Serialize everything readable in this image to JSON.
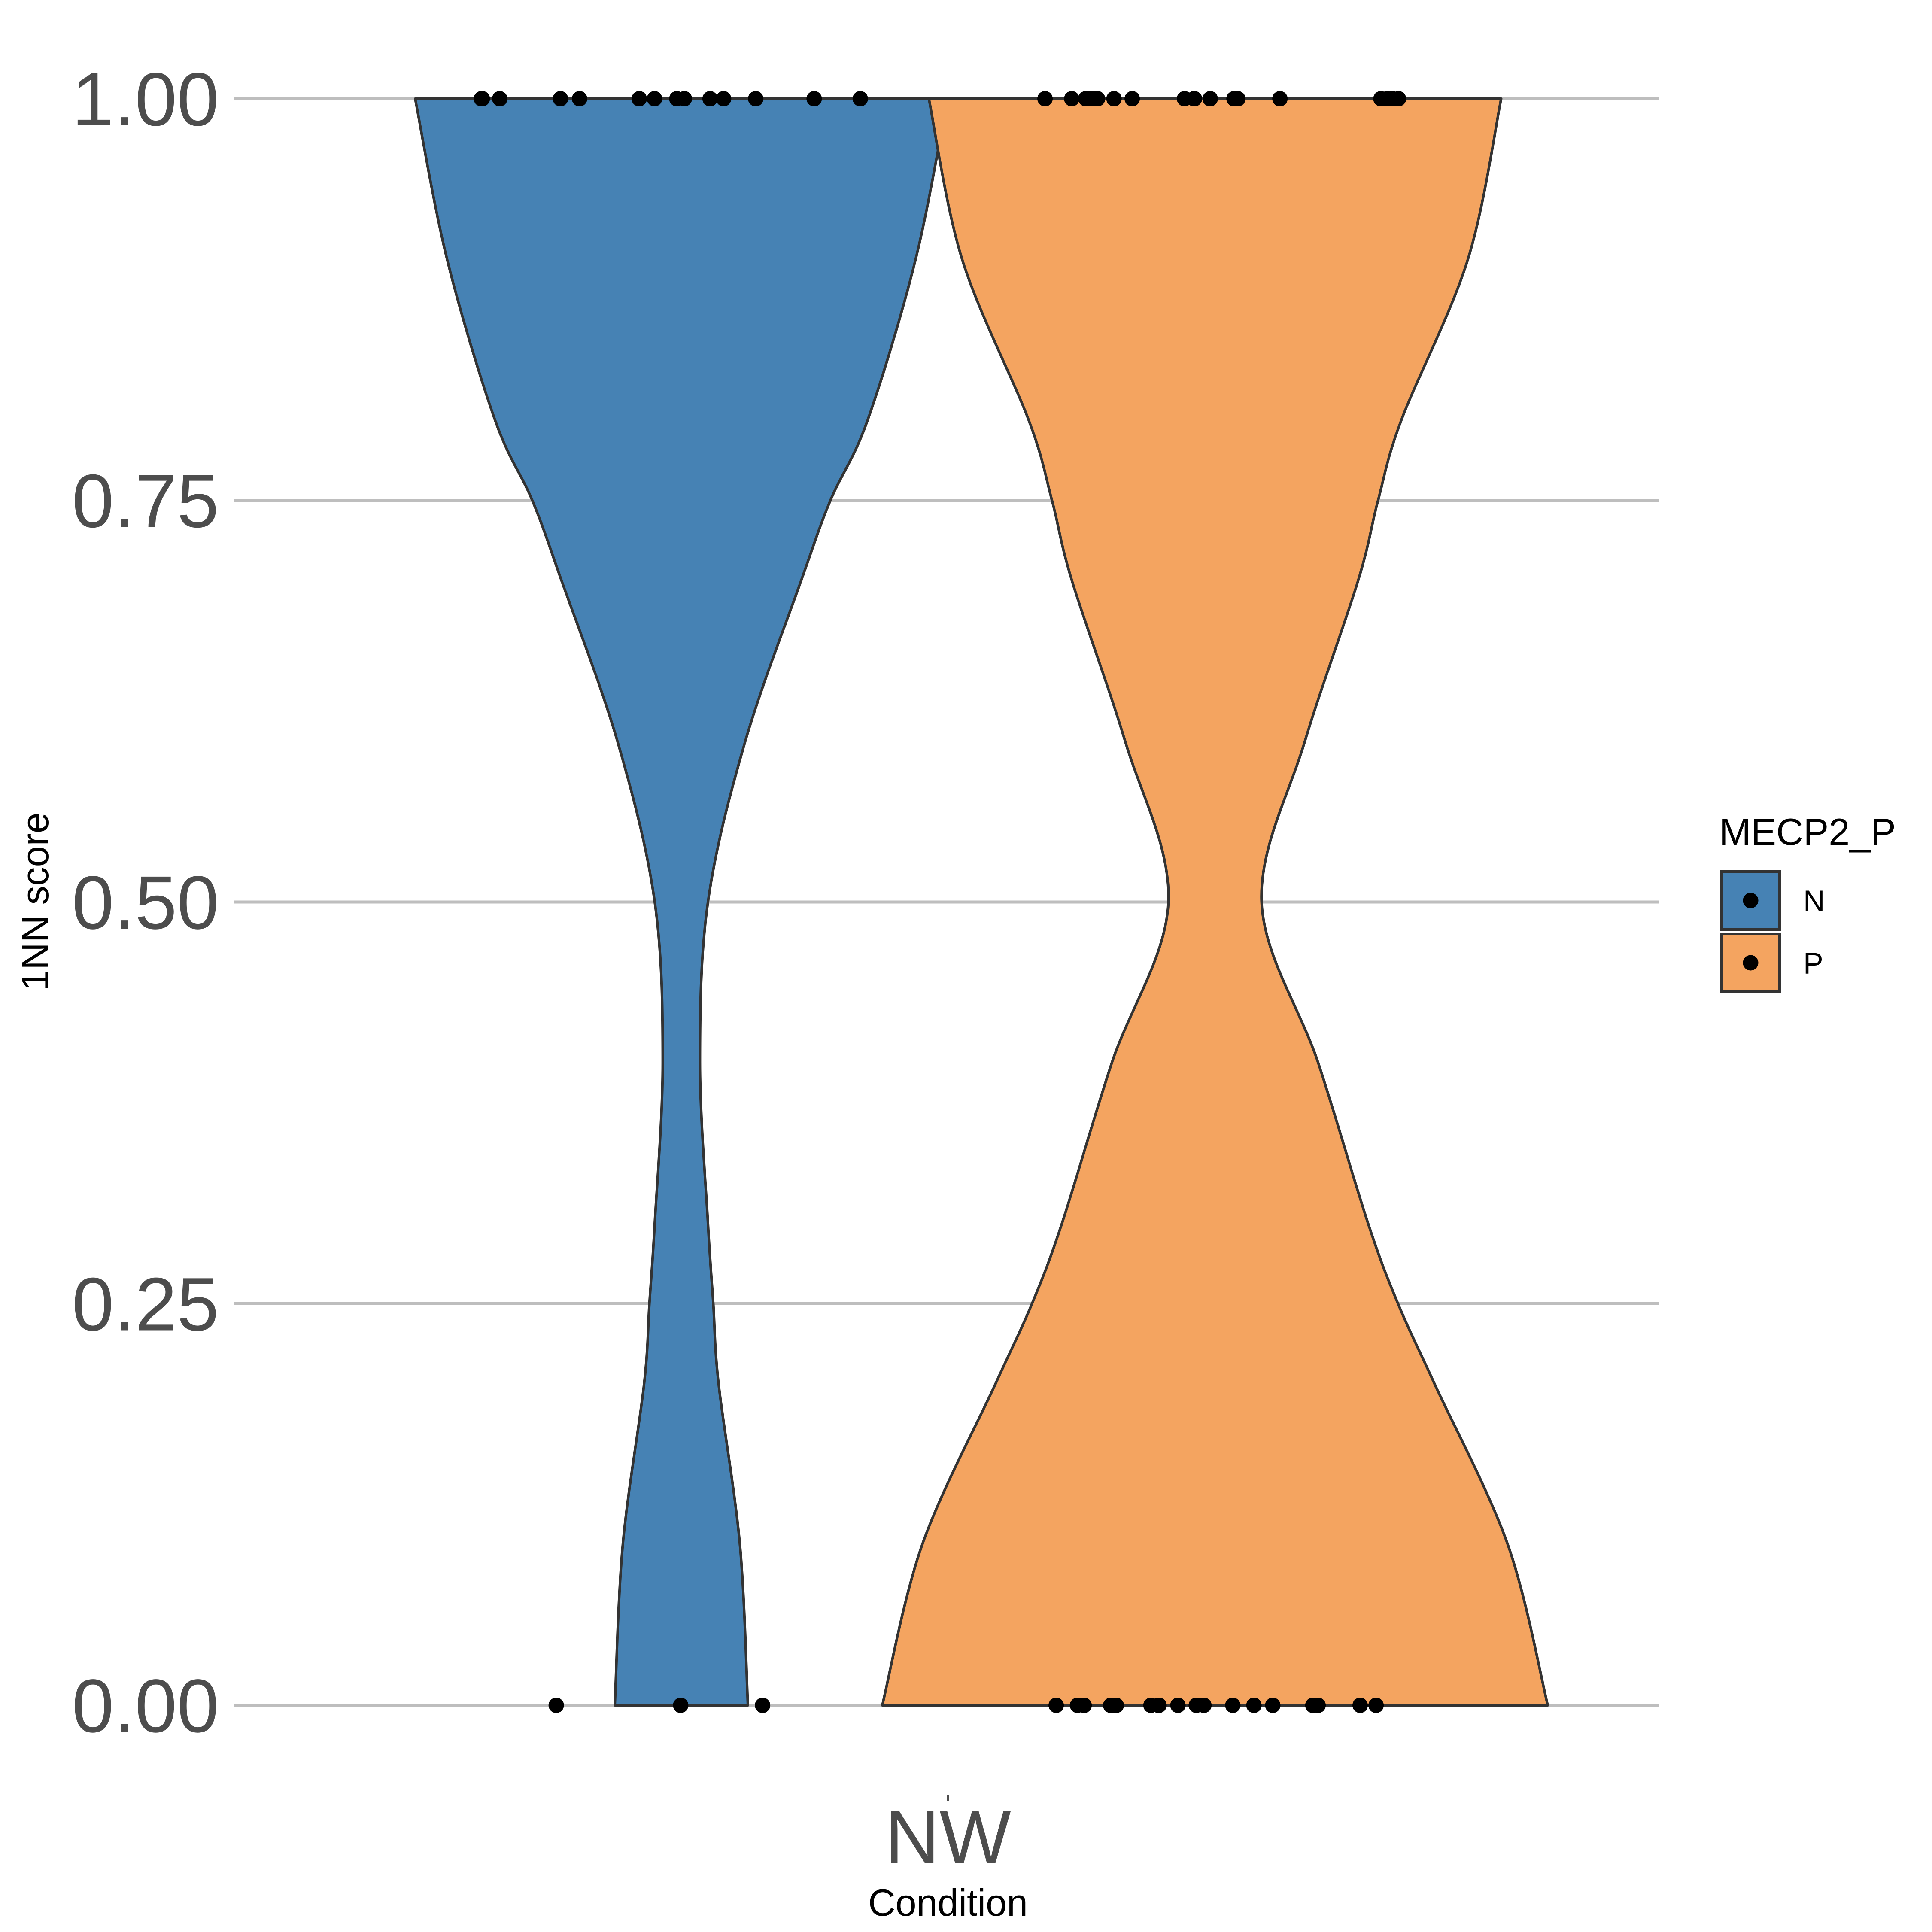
{
  "chart_data": {
    "type": "violin",
    "title": "",
    "xlabel": "Condition",
    "ylabel": "1NN score",
    "ylim": [
      0,
      1
    ],
    "yticks": [
      0,
      0.25,
      0.5,
      0.75,
      1
    ],
    "ytick_labels": [
      "0.00",
      "0.25",
      "0.50",
      "0.75",
      "1.00"
    ],
    "categories": [
      "NW"
    ],
    "grid": "horizontal major gridlines",
    "legend": {
      "title": "MECP2_P",
      "position": "right",
      "entries": [
        {
          "label": "N",
          "color": "#4682b4"
        },
        {
          "label": "P",
          "color": "#f4a460"
        }
      ]
    },
    "series": [
      {
        "name": "N",
        "color": "#4682b4",
        "density_profile": {
          "y": [
            0,
            0.1,
            0.2,
            0.25,
            0.3,
            0.4,
            0.5,
            0.6,
            0.7,
            0.75,
            0.8,
            0.9,
            1.0
          ],
          "rel_width": [
            0.25,
            0.22,
            0.14,
            0.12,
            0.1,
            0.07,
            0.1,
            0.24,
            0.45,
            0.56,
            0.7,
            0.88,
            1.0
          ]
        },
        "points_y": [
          1,
          1,
          1,
          1,
          1,
          1,
          1,
          1,
          1,
          1,
          1,
          1,
          1,
          1,
          0,
          0,
          0
        ]
      },
      {
        "name": "P",
        "color": "#f4a460",
        "density_profile": {
          "y": [
            0,
            0.1,
            0.2,
            0.25,
            0.3,
            0.4,
            0.5,
            0.6,
            0.7,
            0.75,
            0.8,
            0.9,
            1.0
          ],
          "rel_width": [
            1.0,
            0.88,
            0.66,
            0.55,
            0.46,
            0.31,
            0.14,
            0.27,
            0.43,
            0.49,
            0.56,
            0.76,
            0.86
          ]
        },
        "points_y": [
          1,
          1,
          1,
          1,
          1,
          1,
          1,
          1,
          1,
          1,
          1,
          1,
          1,
          1,
          1,
          1,
          1,
          1,
          1,
          0,
          0,
          0,
          0,
          0,
          0,
          0,
          0,
          0,
          0,
          0,
          0,
          0,
          0,
          0,
          0,
          0,
          0,
          0
        ]
      }
    ]
  }
}
